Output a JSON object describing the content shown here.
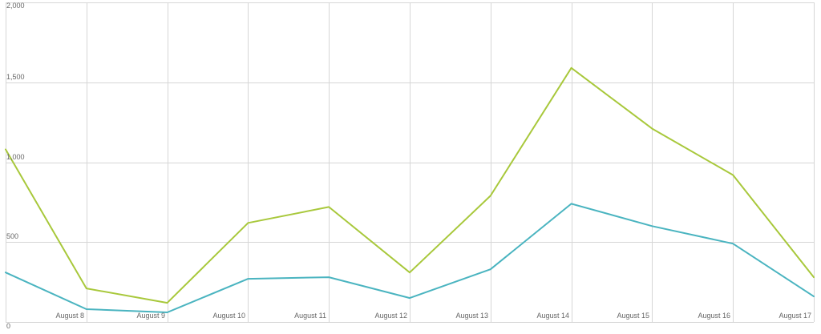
{
  "chart_data": {
    "type": "line",
    "title": "",
    "xlabel": "",
    "ylabel": "",
    "categories": [
      "",
      "August 8",
      "August 9",
      "August 10",
      "August 11",
      "August 12",
      "August 13",
      "August 14",
      "August 15",
      "August 16",
      "August 17"
    ],
    "ylim": [
      0,
      2000
    ],
    "yticks": [
      "0",
      "500",
      "1,000",
      "1,500",
      "2,000"
    ],
    "ytick_values": [
      0,
      500,
      1000,
      1500,
      2000
    ],
    "grid": true,
    "legend": "none",
    "series": [
      {
        "color": "#a8c83b",
        "values": [
          1080,
          210,
          120,
          620,
          720,
          310,
          790,
          1590,
          1210,
          920,
          280
        ]
      },
      {
        "color": "#4ab4c0",
        "values": [
          310,
          80,
          60,
          270,
          280,
          150,
          330,
          740,
          600,
          490,
          160
        ]
      }
    ]
  }
}
